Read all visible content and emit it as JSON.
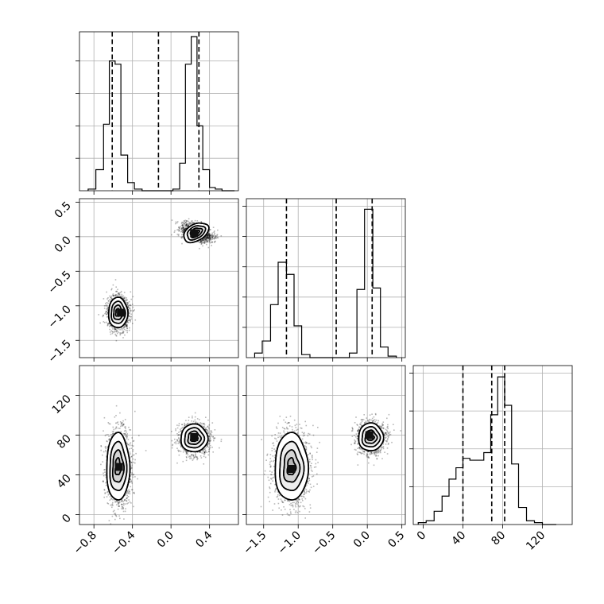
{
  "chart_data": {
    "type": "corner",
    "title": "",
    "parameters": [
      "",
      "",
      ""
    ],
    "grid": true,
    "histograms": [
      {
        "param_index": 0,
        "range": [
          -0.95,
          0.7
        ],
        "bin_edges": [
          -0.86,
          -0.78,
          -0.7,
          -0.64,
          -0.58,
          -0.52,
          -0.45,
          -0.38,
          -0.3,
          -0.22,
          -0.14,
          -0.06,
          0.02,
          0.09,
          0.15,
          0.21,
          0.27,
          0.33,
          0.4,
          0.46,
          0.53,
          0.6,
          0.66
        ],
        "counts": [
          0.01,
          0.13,
          0.41,
          0.8,
          0.78,
          0.22,
          0.05,
          0.01,
          0,
          0,
          0,
          0,
          0.01,
          0.17,
          0.78,
          0.95,
          0.4,
          0.13,
          0.02,
          0.01,
          0,
          0
        ],
        "yticks": [
          0.2,
          0.4,
          0.6,
          0.8
        ],
        "ylim": [
          0,
          0.98
        ],
        "quantiles": [
          -0.61,
          -0.13,
          0.29
        ]
      },
      {
        "param_index": 1,
        "range": [
          -1.75,
          0.55
        ],
        "bin_edges": [
          -1.63,
          -1.52,
          -1.4,
          -1.29,
          -1.17,
          -1.06,
          -0.95,
          -0.83,
          -0.72,
          -0.6,
          -0.49,
          -0.38,
          -0.26,
          -0.15,
          -0.04,
          0.08,
          0.19,
          0.3,
          0.42
        ],
        "counts": [
          0.03,
          0.11,
          0.35,
          0.63,
          0.55,
          0.21,
          0.02,
          0,
          0,
          0,
          0,
          0,
          0.03,
          0.45,
          0.98,
          0.46,
          0.07,
          0.01
        ],
        "yticks": [
          0.2,
          0.4,
          0.6,
          0.8,
          1.0
        ],
        "ylim": [
          0,
          1.05
        ],
        "quantiles": [
          -1.17,
          -0.45,
          0.07
        ]
      },
      {
        "param_index": 2,
        "range": [
          -10,
          150
        ],
        "bin_edges": [
          -5,
          3,
          11,
          19,
          26,
          33,
          40,
          47,
          54,
          61,
          68,
          75,
          82,
          89,
          96,
          104,
          112,
          120,
          134
        ],
        "counts": [
          0.01,
          0.02,
          0.07,
          0.15,
          0.24,
          0.3,
          0.35,
          0.34,
          0.34,
          0.38,
          0.58,
          0.78,
          0.63,
          0.32,
          0.09,
          0.02,
          0.01,
          0
        ],
        "yticks": [
          0.2,
          0.4,
          0.6,
          0.8
        ],
        "ylim": [
          0,
          0.84
        ],
        "quantiles": [
          40,
          69,
          82
        ]
      }
    ],
    "axes": [
      {
        "param_index": 0,
        "range": [
          -0.95,
          0.7
        ],
        "ticks": [
          -0.8,
          -0.4,
          0.0,
          0.4
        ],
        "tick_labels": [
          "−0.8",
          "−0.4",
          "0.0",
          "0.4"
        ]
      },
      {
        "param_index": 1,
        "range": [
          -1.75,
          0.55
        ],
        "ticks": [
          -1.5,
          -1.0,
          -0.5,
          0.0,
          0.5
        ],
        "tick_labels": [
          "−1.5",
          "−1.0",
          "−0.5",
          "0.0",
          "0.5"
        ]
      },
      {
        "param_index": 2,
        "range": [
          -10,
          150
        ],
        "ticks": [
          0,
          40,
          80,
          120
        ],
        "tick_labels": [
          "0",
          "40",
          "80",
          "120"
        ]
      }
    ],
    "scatter_panels": [
      {
        "x_param": 0,
        "y_param": 1,
        "clusters": [
          {
            "cx": -0.55,
            "cy": -1.1,
            "sx": 0.05,
            "sy": 0.11,
            "n": 1400,
            "peak": [
              -0.52,
              -1.1
            ]
          },
          {
            "cx": 0.26,
            "cy": 0.06,
            "sx": 0.07,
            "sy": 0.06,
            "n": 1400,
            "peak": [
              0.24,
              0.05
            ]
          }
        ]
      },
      {
        "x_param": 0,
        "y_param": 2,
        "clusters": [
          {
            "cx": -0.55,
            "cy": 48,
            "sx": 0.06,
            "sy": 17,
            "n": 1500,
            "peak": [
              -0.54,
              48
            ]
          },
          {
            "cx": 0.24,
            "cy": 77,
            "sx": 0.07,
            "sy": 7,
            "n": 1400,
            "peak": [
              0.24,
              78
            ]
          }
        ]
      },
      {
        "x_param": 1,
        "y_param": 2,
        "clusters": [
          {
            "cx": -1.1,
            "cy": 48,
            "sx": 0.12,
            "sy": 17,
            "n": 1500,
            "peak": [
              -1.1,
              46
            ]
          },
          {
            "cx": 0.05,
            "cy": 78,
            "sx": 0.09,
            "sy": 7,
            "n": 1400,
            "peak": [
              0.03,
              80
            ]
          }
        ]
      }
    ]
  }
}
